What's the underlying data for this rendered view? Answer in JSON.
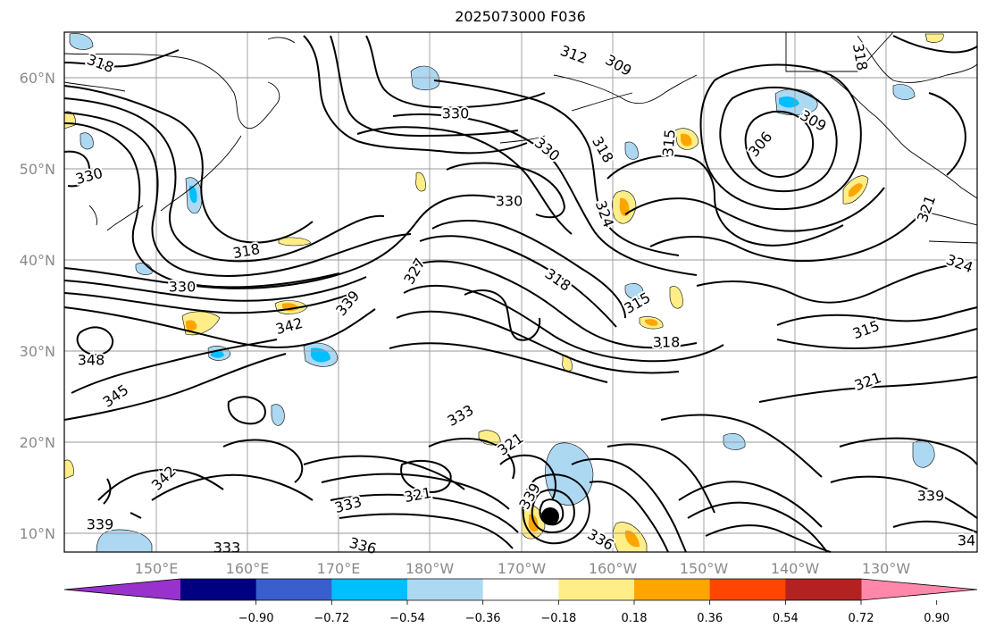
{
  "title": "2025073000 F036",
  "map": {
    "lat_labels": [
      "60°N",
      "50°N",
      "40°N",
      "30°N",
      "20°N",
      "10°N"
    ],
    "lon_labels": [
      "150°E",
      "160°E",
      "170°E",
      "180°W",
      "170°W",
      "160°W",
      "150°W",
      "140°W",
      "130°W"
    ],
    "contour_labels": [
      {
        "text": "318"
      },
      {
        "text": "312"
      },
      {
        "text": "309"
      },
      {
        "text": "318"
      },
      {
        "text": "330"
      },
      {
        "text": "330"
      },
      {
        "text": "318"
      },
      {
        "text": "315"
      },
      {
        "text": "306"
      },
      {
        "text": "309"
      },
      {
        "text": "330"
      },
      {
        "text": "330"
      },
      {
        "text": "324"
      },
      {
        "text": "321"
      },
      {
        "text": "318"
      },
      {
        "text": "327"
      },
      {
        "text": "324"
      },
      {
        "text": "330"
      },
      {
        "text": "339"
      },
      {
        "text": "318"
      },
      {
        "text": "315"
      },
      {
        "text": "342"
      },
      {
        "text": "318"
      },
      {
        "text": "315"
      },
      {
        "text": "348"
      },
      {
        "text": "345"
      },
      {
        "text": "321"
      },
      {
        "text": "333"
      },
      {
        "text": "321"
      },
      {
        "text": "342"
      },
      {
        "text": "321"
      },
      {
        "text": "333"
      },
      {
        "text": "339"
      },
      {
        "text": "339"
      },
      {
        "text": "336"
      },
      {
        "text": "339"
      },
      {
        "text": "333"
      },
      {
        "text": "336"
      },
      {
        "text": "34"
      }
    ]
  },
  "colorbar": {
    "colors": [
      "#9932cc",
      "#000080",
      "#3a5fcd",
      "#00bfff",
      "#add8f2",
      "#ffffff",
      "#ffee88",
      "#ffa500",
      "#ff4500",
      "#b22222",
      "#ff88aa"
    ],
    "tick_labels": [
      "−0.90",
      "−0.72",
      "−0.54",
      "−0.36",
      "−0.18",
      "0.18",
      "0.36",
      "0.54",
      "0.72",
      "0.90"
    ]
  },
  "fill_colors": {
    "neg_light": "#add8f2",
    "neg_mid": "#00bfff",
    "pos_light": "#ffee88",
    "pos_mid": "#ffa500"
  }
}
